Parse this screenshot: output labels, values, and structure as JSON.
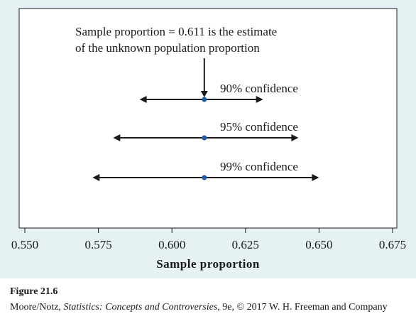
{
  "chart_data": {
    "type": "scatter",
    "title": "",
    "xlabel": "Sample proportion",
    "ylabel": "",
    "xlim": [
      0.55,
      0.675
    ],
    "xticks": [
      "0.550",
      "0.575",
      "0.600",
      "0.625",
      "0.650",
      "0.675"
    ],
    "estimate": 0.611,
    "annotation_lines": [
      "Sample proportion = 0.611 is the estimate",
      "of the unknown population proportion"
    ],
    "intervals": [
      {
        "label": "90% confidence",
        "lower": 0.589,
        "upper": 0.631,
        "point": 0.611
      },
      {
        "label": "95% confidence",
        "lower": 0.58,
        "upper": 0.643,
        "point": 0.611
      },
      {
        "label": "99% confidence",
        "lower": 0.573,
        "upper": 0.65,
        "point": 0.611
      }
    ],
    "grid": false,
    "colors": {
      "point": "#1f5aa6",
      "line": "#1a1a1a",
      "background": "#e5f1f3"
    }
  },
  "caption": {
    "figure_label": "Figure 21.6",
    "credit_prefix": "Moore/Notz, ",
    "credit_title": "Statistics: Concepts and Controversies",
    "credit_suffix": ", 9e, © 2017 W. H. Freeman and Company"
  }
}
